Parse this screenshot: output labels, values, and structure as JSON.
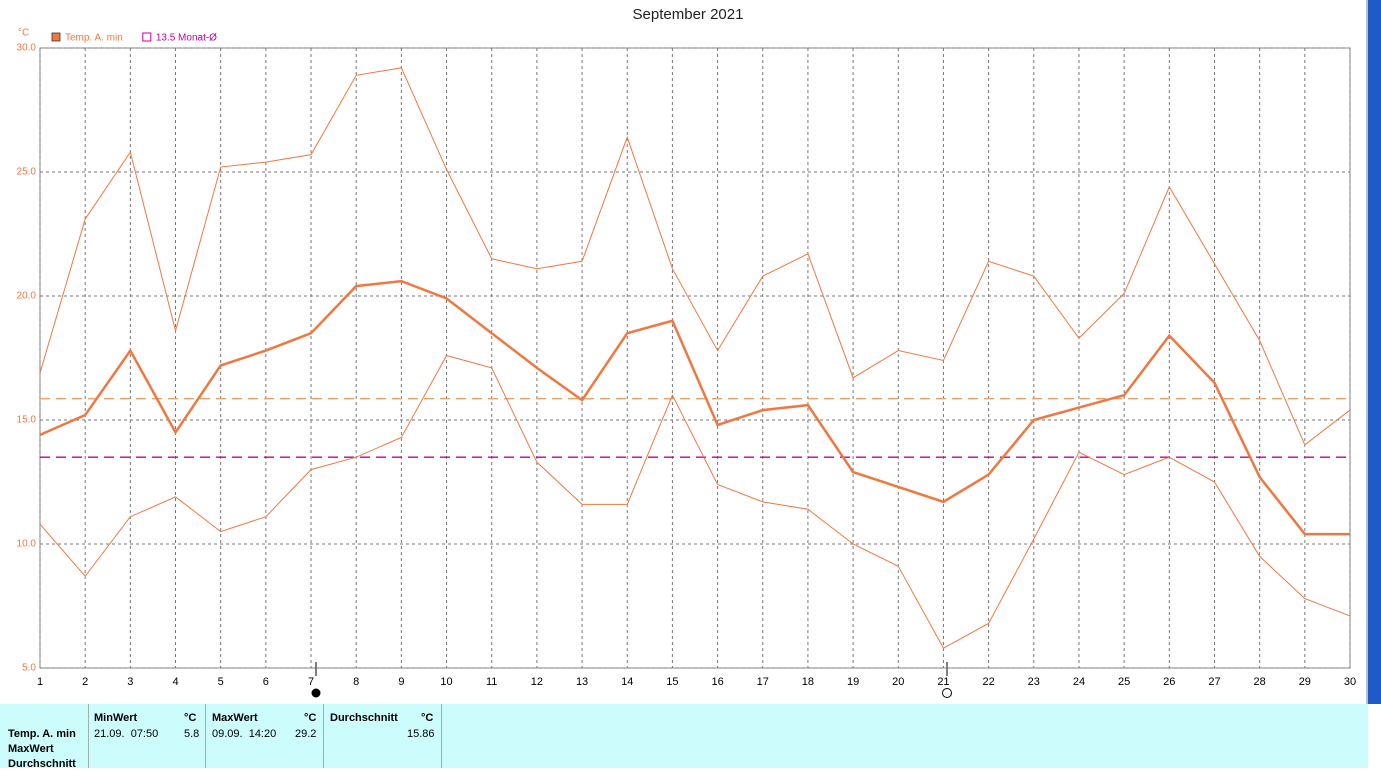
{
  "chart_data": {
    "type": "line",
    "title": "September 2021",
    "y_unit": "°C",
    "x": [
      1,
      2,
      3,
      4,
      5,
      6,
      7,
      8,
      9,
      10,
      11,
      12,
      13,
      14,
      15,
      16,
      17,
      18,
      19,
      20,
      21,
      22,
      23,
      24,
      25,
      26,
      27,
      28,
      29,
      30
    ],
    "xlim": [
      1,
      30
    ],
    "xticks": [
      1,
      2,
      3,
      4,
      5,
      6,
      7,
      8,
      9,
      10,
      11,
      12,
      13,
      14,
      15,
      16,
      17,
      18,
      19,
      20,
      21,
      22,
      23,
      24,
      25,
      26,
      27,
      28,
      29,
      30
    ],
    "ylim": [
      5,
      30
    ],
    "yticks": [
      {
        "value": 5,
        "label": "5.0"
      },
      {
        "value": 10,
        "label": "10.0"
      },
      {
        "value": 15,
        "label": "15.0"
      },
      {
        "value": 20,
        "label": "20.0"
      },
      {
        "value": 25,
        "label": "25.0"
      },
      {
        "value": 30,
        "label": "30.0"
      }
    ],
    "grid": true,
    "series": [
      {
        "name": "Temp. A. min",
        "color": "#f07840",
        "width": 2.5,
        "values": [
          14.4,
          15.2,
          17.8,
          14.5,
          17.2,
          17.8,
          18.5,
          20.4,
          20.6,
          19.9,
          18.5,
          17.1,
          15.8,
          18.5,
          19.0,
          14.8,
          15.4,
          15.6,
          12.9,
          12.3,
          11.7,
          12.8,
          15.0,
          15.5,
          16.0,
          18.4,
          16.5,
          12.7,
          10.4,
          10.4
        ]
      },
      {
        "color": "#f07840",
        "width": 1,
        "values": [
          16.9,
          23.1,
          25.8,
          18.6,
          25.2,
          25.4,
          25.7,
          28.9,
          29.2,
          25.1,
          21.5,
          21.1,
          21.4,
          26.4,
          21.1,
          17.8,
          20.8,
          21.7,
          16.7,
          17.8,
          17.4,
          21.4,
          20.8,
          18.3,
          20.1,
          24.4,
          21.3,
          18.2,
          14.0,
          15.4
        ]
      },
      {
        "color": "#f07840",
        "width": 1,
        "values": [
          10.8,
          8.7,
          11.1,
          11.9,
          10.5,
          11.1,
          13.0,
          13.5,
          14.3,
          17.6,
          17.1,
          13.3,
          11.6,
          11.6,
          16.0,
          12.4,
          11.7,
          11.4,
          10.0,
          9.1,
          5.8,
          6.8,
          10.2,
          13.7,
          12.8,
          13.5,
          12.5,
          9.5,
          7.8,
          7.1
        ]
      }
    ],
    "reference_lines": [
      {
        "label": "13.5 Monat-Ø",
        "value": 13.5,
        "color": "#c000a0"
      },
      {
        "value": 15.86,
        "color": "#f0a060"
      }
    ]
  },
  "table": {
    "row_labels": [
      "Temp. A. min",
      "MaxWert",
      "Durchschnitt"
    ],
    "columns": [
      {
        "header": "MinWert",
        "unit": "°C",
        "when": "21.09.  07:50",
        "value": "5.8"
      },
      {
        "header": "MaxWert",
        "unit": "°C",
        "when": "09.09.  14:20",
        "value": "29.2"
      },
      {
        "header": "Durchschnitt",
        "unit": "°C",
        "value": "15.86"
      }
    ]
  }
}
